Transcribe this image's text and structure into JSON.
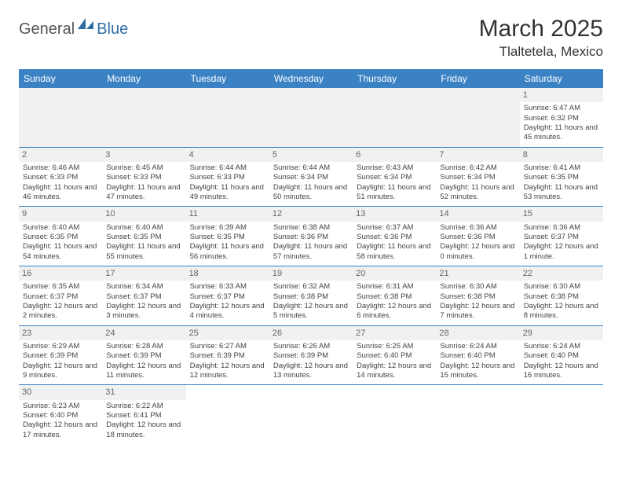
{
  "logo": {
    "part1": "General",
    "part2": "Blue"
  },
  "title": "March 2025",
  "location": "Tlaltetela, Mexico",
  "colors": {
    "header_bg": "#3b82c4",
    "border": "#3b82c4",
    "daynum_bg": "#f1f1f1"
  },
  "day_headers": [
    "Sunday",
    "Monday",
    "Tuesday",
    "Wednesday",
    "Thursday",
    "Friday",
    "Saturday"
  ],
  "weeks": [
    [
      null,
      null,
      null,
      null,
      null,
      null,
      {
        "n": "1",
        "sr": "Sunrise: 6:47 AM",
        "ss": "Sunset: 6:32 PM",
        "dl": "Daylight: 11 hours and 45 minutes."
      }
    ],
    [
      {
        "n": "2",
        "sr": "Sunrise: 6:46 AM",
        "ss": "Sunset: 6:33 PM",
        "dl": "Daylight: 11 hours and 46 minutes."
      },
      {
        "n": "3",
        "sr": "Sunrise: 6:45 AM",
        "ss": "Sunset: 6:33 PM",
        "dl": "Daylight: 11 hours and 47 minutes."
      },
      {
        "n": "4",
        "sr": "Sunrise: 6:44 AM",
        "ss": "Sunset: 6:33 PM",
        "dl": "Daylight: 11 hours and 49 minutes."
      },
      {
        "n": "5",
        "sr": "Sunrise: 6:44 AM",
        "ss": "Sunset: 6:34 PM",
        "dl": "Daylight: 11 hours and 50 minutes."
      },
      {
        "n": "6",
        "sr": "Sunrise: 6:43 AM",
        "ss": "Sunset: 6:34 PM",
        "dl": "Daylight: 11 hours and 51 minutes."
      },
      {
        "n": "7",
        "sr": "Sunrise: 6:42 AM",
        "ss": "Sunset: 6:34 PM",
        "dl": "Daylight: 11 hours and 52 minutes."
      },
      {
        "n": "8",
        "sr": "Sunrise: 6:41 AM",
        "ss": "Sunset: 6:35 PM",
        "dl": "Daylight: 11 hours and 53 minutes."
      }
    ],
    [
      {
        "n": "9",
        "sr": "Sunrise: 6:40 AM",
        "ss": "Sunset: 6:35 PM",
        "dl": "Daylight: 11 hours and 54 minutes."
      },
      {
        "n": "10",
        "sr": "Sunrise: 6:40 AM",
        "ss": "Sunset: 6:35 PM",
        "dl": "Daylight: 11 hours and 55 minutes."
      },
      {
        "n": "11",
        "sr": "Sunrise: 6:39 AM",
        "ss": "Sunset: 6:35 PM",
        "dl": "Daylight: 11 hours and 56 minutes."
      },
      {
        "n": "12",
        "sr": "Sunrise: 6:38 AM",
        "ss": "Sunset: 6:36 PM",
        "dl": "Daylight: 11 hours and 57 minutes."
      },
      {
        "n": "13",
        "sr": "Sunrise: 6:37 AM",
        "ss": "Sunset: 6:36 PM",
        "dl": "Daylight: 11 hours and 58 minutes."
      },
      {
        "n": "14",
        "sr": "Sunrise: 6:36 AM",
        "ss": "Sunset: 6:36 PM",
        "dl": "Daylight: 12 hours and 0 minutes."
      },
      {
        "n": "15",
        "sr": "Sunrise: 6:36 AM",
        "ss": "Sunset: 6:37 PM",
        "dl": "Daylight: 12 hours and 1 minute."
      }
    ],
    [
      {
        "n": "16",
        "sr": "Sunrise: 6:35 AM",
        "ss": "Sunset: 6:37 PM",
        "dl": "Daylight: 12 hours and 2 minutes."
      },
      {
        "n": "17",
        "sr": "Sunrise: 6:34 AM",
        "ss": "Sunset: 6:37 PM",
        "dl": "Daylight: 12 hours and 3 minutes."
      },
      {
        "n": "18",
        "sr": "Sunrise: 6:33 AM",
        "ss": "Sunset: 6:37 PM",
        "dl": "Daylight: 12 hours and 4 minutes."
      },
      {
        "n": "19",
        "sr": "Sunrise: 6:32 AM",
        "ss": "Sunset: 6:38 PM",
        "dl": "Daylight: 12 hours and 5 minutes."
      },
      {
        "n": "20",
        "sr": "Sunrise: 6:31 AM",
        "ss": "Sunset: 6:38 PM",
        "dl": "Daylight: 12 hours and 6 minutes."
      },
      {
        "n": "21",
        "sr": "Sunrise: 6:30 AM",
        "ss": "Sunset: 6:38 PM",
        "dl": "Daylight: 12 hours and 7 minutes."
      },
      {
        "n": "22",
        "sr": "Sunrise: 6:30 AM",
        "ss": "Sunset: 6:38 PM",
        "dl": "Daylight: 12 hours and 8 minutes."
      }
    ],
    [
      {
        "n": "23",
        "sr": "Sunrise: 6:29 AM",
        "ss": "Sunset: 6:39 PM",
        "dl": "Daylight: 12 hours and 9 minutes."
      },
      {
        "n": "24",
        "sr": "Sunrise: 6:28 AM",
        "ss": "Sunset: 6:39 PM",
        "dl": "Daylight: 12 hours and 11 minutes."
      },
      {
        "n": "25",
        "sr": "Sunrise: 6:27 AM",
        "ss": "Sunset: 6:39 PM",
        "dl": "Daylight: 12 hours and 12 minutes."
      },
      {
        "n": "26",
        "sr": "Sunrise: 6:26 AM",
        "ss": "Sunset: 6:39 PM",
        "dl": "Daylight: 12 hours and 13 minutes."
      },
      {
        "n": "27",
        "sr": "Sunrise: 6:25 AM",
        "ss": "Sunset: 6:40 PM",
        "dl": "Daylight: 12 hours and 14 minutes."
      },
      {
        "n": "28",
        "sr": "Sunrise: 6:24 AM",
        "ss": "Sunset: 6:40 PM",
        "dl": "Daylight: 12 hours and 15 minutes."
      },
      {
        "n": "29",
        "sr": "Sunrise: 6:24 AM",
        "ss": "Sunset: 6:40 PM",
        "dl": "Daylight: 12 hours and 16 minutes."
      }
    ],
    [
      {
        "n": "30",
        "sr": "Sunrise: 6:23 AM",
        "ss": "Sunset: 6:40 PM",
        "dl": "Daylight: 12 hours and 17 minutes."
      },
      {
        "n": "31",
        "sr": "Sunrise: 6:22 AM",
        "ss": "Sunset: 6:41 PM",
        "dl": "Daylight: 12 hours and 18 minutes."
      },
      null,
      null,
      null,
      null,
      null
    ]
  ]
}
